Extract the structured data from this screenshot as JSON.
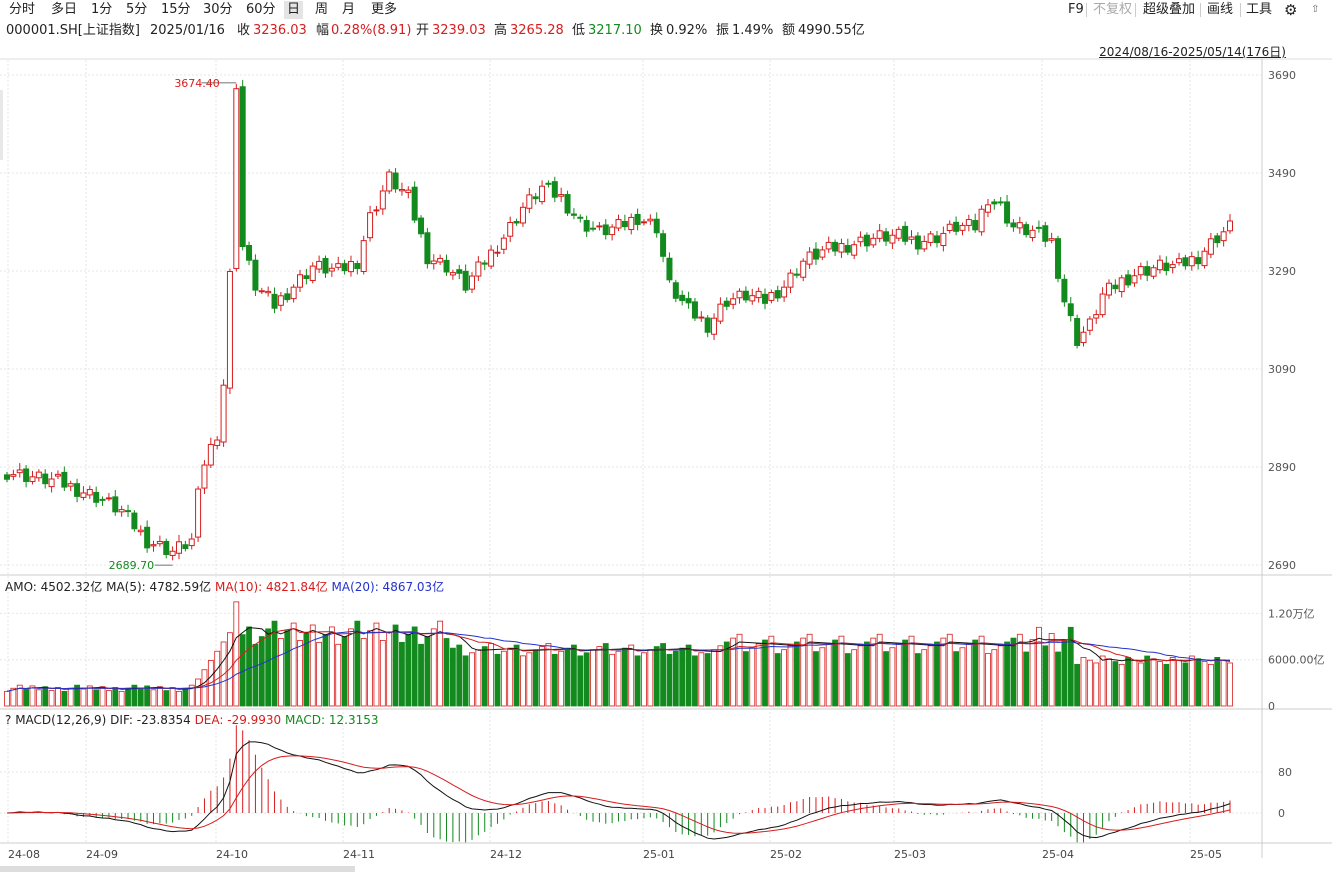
{
  "toolbar": {
    "tabs": [
      "分时",
      "多日",
      "1分",
      "5分",
      "15分",
      "30分",
      "60分",
      "日",
      "周",
      "月",
      "更多"
    ],
    "active_tab": "日",
    "right": [
      "F9",
      "不复权",
      "超级叠加",
      "画线",
      "工具"
    ]
  },
  "info": {
    "code": "000001.SH[上证指数]",
    "date": "2025/01/16",
    "close_label": "收",
    "close": "3236.03",
    "change_label": "幅",
    "change": "0.28%(8.91)",
    "open_label": "开",
    "open": "3239.03",
    "high_label": "高",
    "high": "3265.28",
    "low_label": "低",
    "low": "3217.10",
    "turnover_label": "换",
    "turnover": "0.92%",
    "amplitude_label": "振",
    "amplitude": "1.49%",
    "amount_label": "额",
    "amount": "4990.55亿"
  },
  "date_range": "2024/08/16-2025/05/14(176日)",
  "chart_data": {
    "type": "candlestick",
    "y_ticks": [
      "3690",
      "3490",
      "3290",
      "3090",
      "2890",
      "2690"
    ],
    "ylim": [
      2690,
      3690
    ],
    "x_ticks": [
      "24-08",
      "24-09",
      "24-10",
      "24-11",
      "24-12",
      "25-01",
      "25-02",
      "25-03",
      "25-04",
      "25-05"
    ],
    "high_label": "3674.40",
    "low_label": "2689.70",
    "volume": {
      "label": "AMO: 4502.32亿",
      "ma5": "MA(5): 4782.59亿",
      "ma10": "MA(10): 4821.84亿",
      "ma20": "MA(20): 4867.03亿",
      "ticks": [
        "1.20万亿",
        "6000.00亿",
        "0"
      ]
    },
    "macd": {
      "label": "MACD(12,26,9)",
      "dif": "DIF: -23.8354",
      "dea": "DEA: -29.9930",
      "macd": "MACD: 12.3153",
      "ticks": [
        "80",
        "0"
      ]
    }
  },
  "colors": {
    "up": "#d61d1d",
    "down": "#138a1e",
    "grid": "#e6e6e6",
    "ma20": "#2233cc"
  }
}
